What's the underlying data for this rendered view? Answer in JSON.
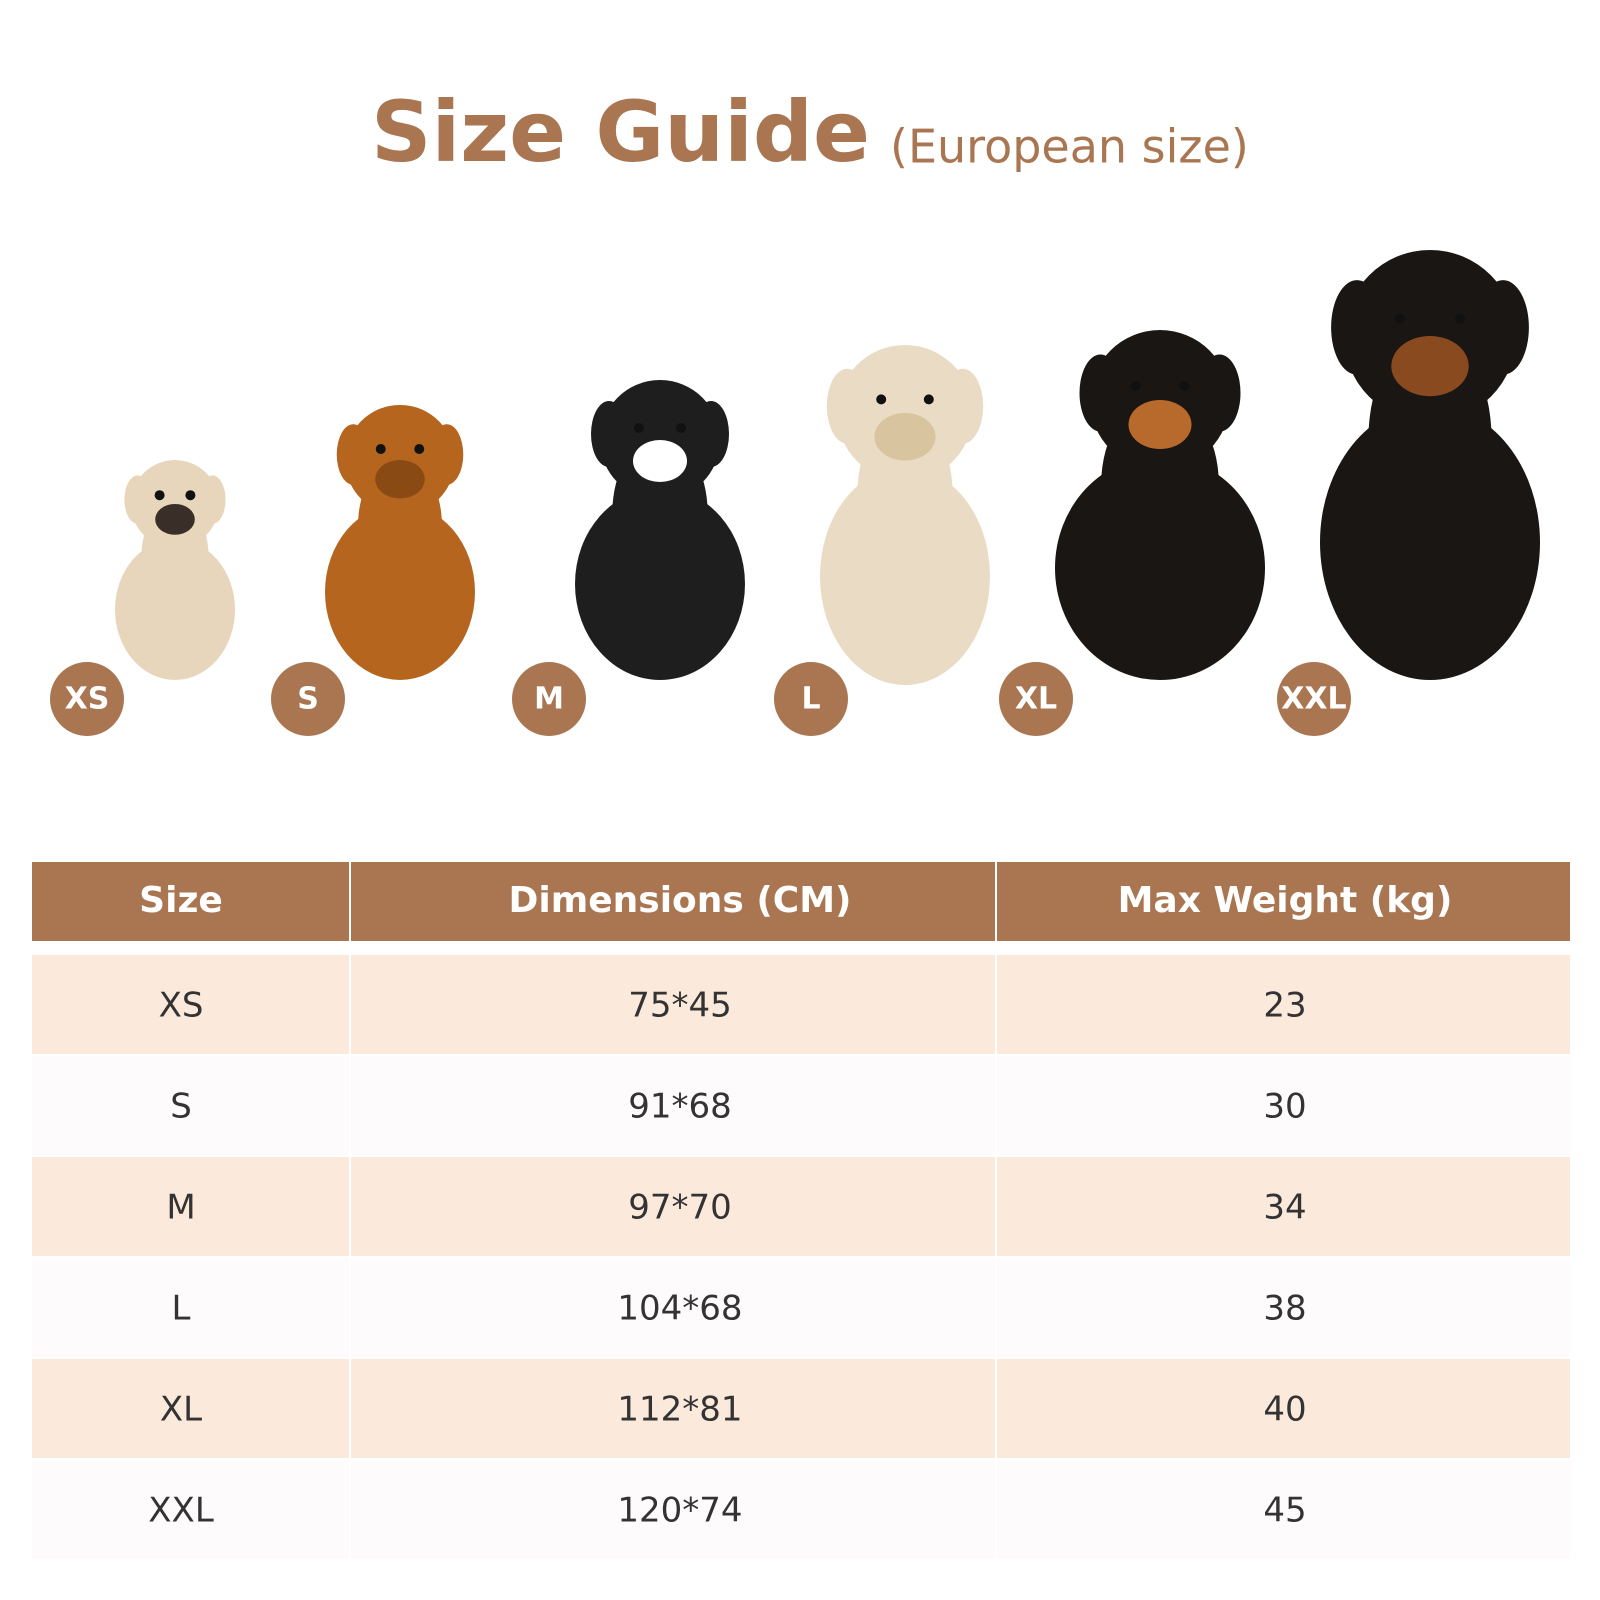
{
  "header": {
    "title": "Size Guide",
    "subtitle": "(European size)"
  },
  "badges": [
    "XS",
    "S",
    "M",
    "L",
    "XL",
    "XXL"
  ],
  "table": {
    "columns": [
      "Size",
      "Dimensions (CM)",
      "Max Weight (kg)"
    ],
    "rows": [
      [
        "XS",
        "75*45",
        23
      ],
      [
        "S",
        "91*68",
        30
      ],
      [
        "M",
        "97*70",
        34
      ],
      [
        "L",
        "104*68",
        38
      ],
      [
        "XL",
        "112*81",
        40
      ],
      [
        "XXL",
        "120*74",
        45
      ]
    ]
  }
}
